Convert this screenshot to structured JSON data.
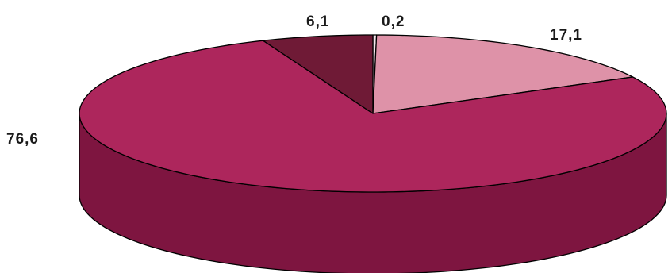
{
  "chart_data": {
    "type": "pie",
    "title": "",
    "style": "3d",
    "legend": "none",
    "slices": [
      {
        "value": 0.2,
        "label": "0,2",
        "color": "#F4E6EC"
      },
      {
        "value": 17.1,
        "label": "17,1",
        "color": "#DE92A8"
      },
      {
        "value": 76.6,
        "label": "76,6",
        "color": "#AD265C"
      },
      {
        "value": 6.1,
        "label": "6,1",
        "color": "#6F1A36"
      }
    ],
    "side_colors": [
      "#E9D3DD",
      "#C3728C",
      "#7E1540",
      "#5A1229"
    ]
  }
}
